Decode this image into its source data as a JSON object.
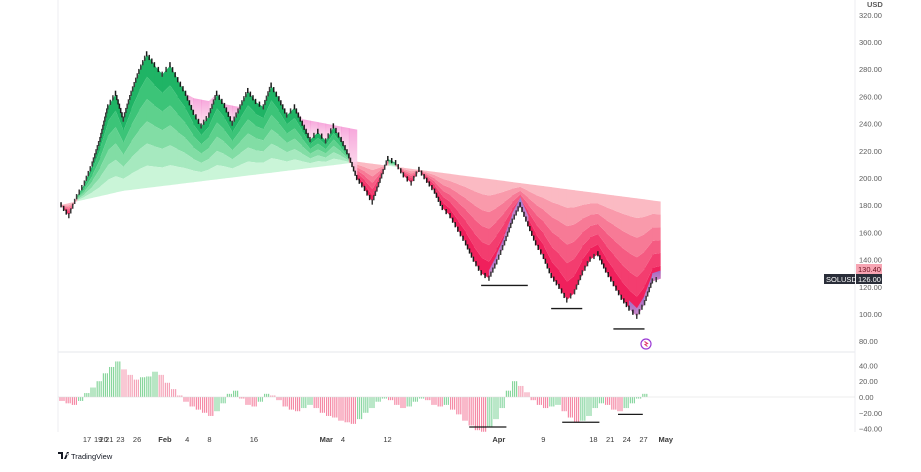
{
  "chart_data": {
    "type": "candlestick",
    "currency": "USD",
    "symbol": "SOLUSD",
    "last_price": "126.00",
    "ref_price": "130.40",
    "price_ticks": [
      "320.00",
      "300.00",
      "280.00",
      "260.00",
      "240.00",
      "220.00",
      "200.00",
      "180.00",
      "160.00",
      "140.00",
      "120.00",
      "100.00",
      "80.00"
    ],
    "price_tick_values": [
      320,
      300,
      280,
      260,
      240,
      220,
      200,
      180,
      160,
      140,
      120,
      100,
      80
    ],
    "osc_ticks": [
      "40.00",
      "20.00",
      "0.00",
      "−20.00",
      "−40.00"
    ],
    "osc_tick_values": [
      40,
      20,
      0,
      -20,
      -40
    ],
    "x_ticks": [
      {
        "label": "17",
        "day": 17
      },
      {
        "label": "19",
        "day": 19
      },
      {
        "label": "20",
        "day": 20
      },
      {
        "label": "21",
        "day": 21
      },
      {
        "label": "23",
        "day": 23
      },
      {
        "label": "26",
        "day": 26
      },
      {
        "label": "Feb",
        "day": 31,
        "bold": true
      },
      {
        "label": "4",
        "day": 35
      },
      {
        "label": "8",
        "day": 39
      },
      {
        "label": "16",
        "day": 47
      },
      {
        "label": "Mar",
        "day": 60,
        "bold": true
      },
      {
        "label": "4",
        "day": 63
      },
      {
        "label": "12",
        "day": 71
      },
      {
        "label": "Apr",
        "day": 91,
        "bold": true
      },
      {
        "label": "9",
        "day": 99
      },
      {
        "label": "18",
        "day": 108
      },
      {
        "label": "21",
        "day": 111
      },
      {
        "label": "24",
        "day": 114
      },
      {
        "label": "27",
        "day": 117
      },
      {
        "label": "May",
        "day": 121,
        "bold": true
      }
    ],
    "price_path": [
      [
        0,
        180
      ],
      [
        1,
        172
      ],
      [
        2,
        186
      ],
      [
        3,
        196
      ],
      [
        4,
        210
      ],
      [
        5,
        228
      ],
      [
        6,
        252
      ],
      [
        7,
        262
      ],
      [
        8,
        243
      ],
      [
        9,
        262
      ],
      [
        10,
        278
      ],
      [
        11,
        291
      ],
      [
        12,
        283
      ],
      [
        13,
        276
      ],
      [
        14,
        283
      ],
      [
        15,
        272
      ],
      [
        16,
        262
      ],
      [
        17,
        248
      ],
      [
        18,
        238
      ],
      [
        19,
        246
      ],
      [
        20,
        262
      ],
      [
        21,
        253
      ],
      [
        22,
        240
      ],
      [
        23,
        252
      ],
      [
        24,
        264
      ],
      [
        25,
        256
      ],
      [
        26,
        252
      ],
      [
        27,
        268
      ],
      [
        28,
        258
      ],
      [
        29,
        246
      ],
      [
        30,
        252
      ],
      [
        31,
        240
      ],
      [
        32,
        228
      ],
      [
        33,
        234
      ],
      [
        34,
        227
      ],
      [
        35,
        238
      ],
      [
        36,
        228
      ],
      [
        37,
        216
      ],
      [
        38,
        200
      ],
      [
        39,
        192
      ],
      [
        40,
        182
      ],
      [
        41,
        198
      ],
      [
        42,
        214
      ],
      [
        43,
        211
      ],
      [
        44,
        202
      ],
      [
        45,
        196
      ],
      [
        46,
        206
      ],
      [
        47,
        198
      ],
      [
        48,
        190
      ],
      [
        49,
        178
      ],
      [
        50,
        172
      ],
      [
        51,
        162
      ],
      [
        52,
        152
      ],
      [
        53,
        140
      ],
      [
        54,
        130
      ],
      [
        55,
        126
      ],
      [
        56,
        138
      ],
      [
        57,
        152
      ],
      [
        58,
        168
      ],
      [
        59,
        180
      ],
      [
        60,
        166
      ],
      [
        61,
        152
      ],
      [
        62,
        142
      ],
      [
        63,
        128
      ],
      [
        64,
        120
      ],
      [
        65,
        110
      ],
      [
        66,
        116
      ],
      [
        67,
        130
      ],
      [
        68,
        140
      ],
      [
        69,
        144
      ],
      [
        70,
        132
      ],
      [
        71,
        122
      ],
      [
        72,
        112
      ],
      [
        73,
        104
      ],
      [
        74,
        98
      ],
      [
        75,
        108
      ],
      [
        76,
        124
      ],
      [
        77,
        126
      ]
    ],
    "support_levels": [
      {
        "price": 127,
        "from": 54,
        "to": 60
      },
      {
        "price": 110,
        "from": 63,
        "to": 67
      },
      {
        "price": 95,
        "from": 71,
        "to": 75
      }
    ],
    "oscillator": [
      -5,
      -8,
      -10,
      -5,
      5,
      12,
      20,
      30,
      38,
      45,
      35,
      28,
      22,
      25,
      26,
      32,
      28,
      18,
      10,
      2,
      -6,
      -12,
      -16,
      -20,
      -24,
      -18,
      -8,
      4,
      8,
      -2,
      -10,
      -12,
      -6,
      4,
      2,
      -4,
      -12,
      -16,
      -18,
      -14,
      -10,
      -14,
      -20,
      -24,
      -26,
      -30,
      -32,
      -34,
      -28,
      -20,
      -14,
      -6,
      -2,
      -4,
      -10,
      -14,
      -12,
      -6,
      -2,
      -4,
      -10,
      -12,
      -10,
      -16,
      -22,
      -30,
      -36,
      -42,
      -44,
      -38,
      -28,
      -14,
      8,
      20,
      14,
      6,
      -4,
      -10,
      -14,
      -12,
      -10,
      -18,
      -26,
      -32,
      -30,
      -24,
      -14,
      -8,
      -10,
      -16,
      -18,
      -14,
      -8,
      -2,
      4
    ],
    "osc_support_levels": [
      {
        "value": -38,
        "from": 66,
        "to": 72
      },
      {
        "value": -32,
        "from": 81,
        "to": 87
      },
      {
        "value": -22,
        "from": 90,
        "to": 94
      }
    ],
    "colors": {
      "up": "#2fbf71",
      "down": "#f23d6d",
      "bar_wick": "#1a1a1a",
      "label_bg_dark": "#2a2e39",
      "label_bg_red": "#f7a5b3"
    }
  },
  "branding": {
    "name": "TradingView"
  }
}
